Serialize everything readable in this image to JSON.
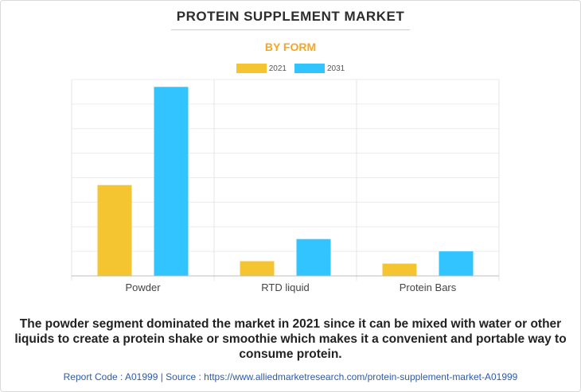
{
  "header": {
    "title": "PROTEIN SUPPLEMENT MARKET",
    "subtitle": "BY FORM"
  },
  "legend": {
    "items": [
      {
        "label": "2021",
        "color": "#f5c531"
      },
      {
        "label": "2031",
        "color": "#31c4ff"
      }
    ]
  },
  "chart_data": {
    "type": "bar",
    "title": "PROTEIN SUPPLEMENT MARKET",
    "subtitle": "BY FORM",
    "categories": [
      "Powder",
      "RTD liquid",
      "Protein Bars"
    ],
    "series": [
      {
        "name": "2021",
        "color": "#f5c531",
        "values": [
          3.7,
          0.6,
          0.5
        ]
      },
      {
        "name": "2031",
        "color": "#31c4ff",
        "values": [
          7.7,
          1.5,
          1.0
        ]
      }
    ],
    "ylim": [
      0,
      8
    ],
    "grid_step": 1,
    "grid": true,
    "xlabel": "",
    "ylabel": "",
    "legend_position": "top"
  },
  "description": "The powder segment dominated the market in 2021 since it can be mixed with water or other liquids to create a protein shake or smoothie which makes it a convenient and portable way to consume protein.",
  "footer": {
    "text": "Report Code : A01999  |  Source : https://www.alliedmarketresearch.com/protein-supplement-market-A01999"
  }
}
